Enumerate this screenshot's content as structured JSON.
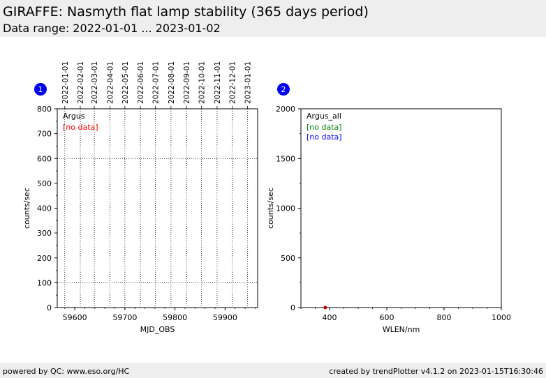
{
  "header": {
    "title": "GIRAFFE: Nasmyth flat lamp stability (365 days period)",
    "subtitle": "Data range: 2022-01-01 ... 2023-01-02"
  },
  "footer": {
    "left": "powered by QC: www.eso.org/HC",
    "right": "created by trendPlotter v4.1.2 on 2023-01-15T16:30:46"
  },
  "chart_data": [
    {
      "type": "scatter",
      "badge": "1",
      "xlabel": "MJD_OBS",
      "ylabel": "counts/sec",
      "xlim": [
        59565,
        59965
      ],
      "ylim": [
        0,
        800
      ],
      "x_ticks": [
        59600,
        59700,
        59800,
        59900
      ],
      "y_ticks": [
        0,
        100,
        200,
        300,
        400,
        500,
        600,
        700,
        800
      ],
      "y_gridlines": [
        100,
        600
      ],
      "date_ticks": [
        {
          "mjd": 59580,
          "label": "2022-01-01"
        },
        {
          "mjd": 59611,
          "label": "2022-02-01"
        },
        {
          "mjd": 59639,
          "label": "2022-03-01"
        },
        {
          "mjd": 59670,
          "label": "2022-04-01"
        },
        {
          "mjd": 59700,
          "label": "2022-05-01"
        },
        {
          "mjd": 59731,
          "label": "2022-06-01"
        },
        {
          "mjd": 59761,
          "label": "2022-07-01"
        },
        {
          "mjd": 59792,
          "label": "2022-08-01"
        },
        {
          "mjd": 59823,
          "label": "2022-09-01"
        },
        {
          "mjd": 59853,
          "label": "2022-10-01"
        },
        {
          "mjd": 59884,
          "label": "2022-11-01"
        },
        {
          "mjd": 59914,
          "label": "2022-12-01"
        },
        {
          "mjd": 59945,
          "label": "2023-01-01"
        }
      ],
      "legend": {
        "title": "Argus",
        "entries": [
          {
            "text": "[no data]",
            "color": "#ff0000"
          }
        ]
      },
      "series": []
    },
    {
      "type": "scatter",
      "badge": "2",
      "xlabel": "WLEN/nm",
      "ylabel": "counts/sec",
      "xlim": [
        300,
        1000
      ],
      "ylim": [
        0,
        2000
      ],
      "x_ticks": [
        400,
        600,
        800,
        1000
      ],
      "y_ticks": [
        0,
        500,
        1000,
        1500,
        2000
      ],
      "legend": {
        "title": "Argus_all",
        "entries": [
          {
            "text": "[no data]",
            "color": "#008000"
          },
          {
            "text": "[no data]",
            "color": "#0000ff"
          }
        ]
      },
      "series": [
        {
          "color": "#cc0000",
          "points": [
            {
              "x": 385,
              "y": 0
            }
          ]
        }
      ]
    }
  ]
}
